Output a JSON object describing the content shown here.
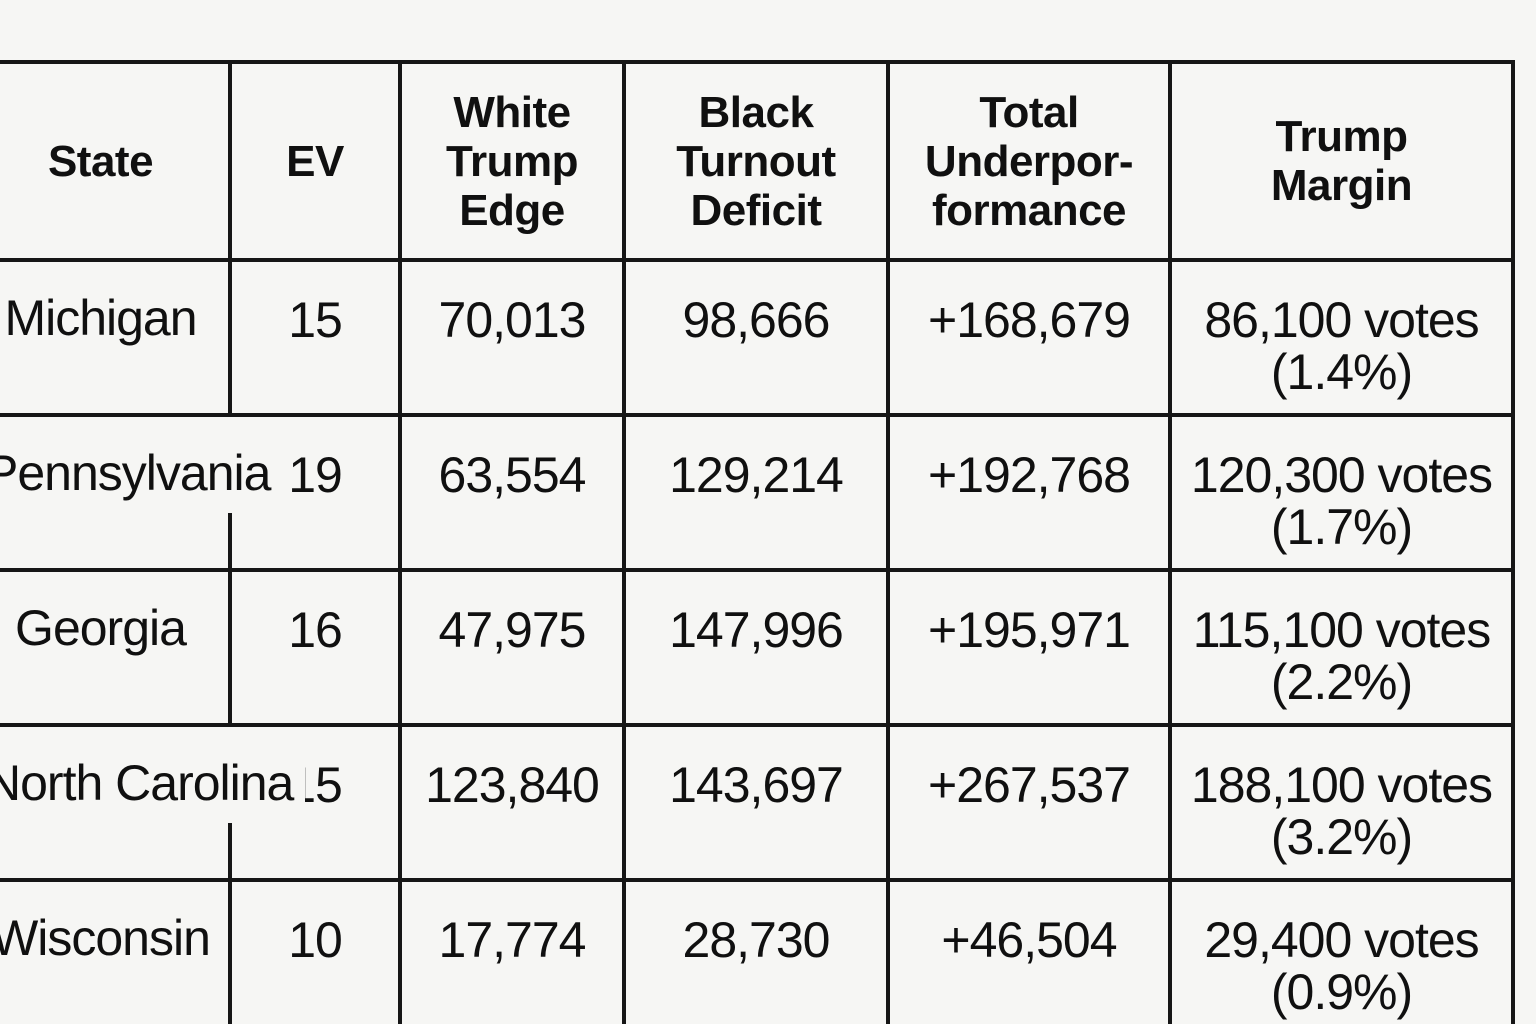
{
  "page": {
    "background": "#f6f6f4",
    "border_color": "#161616",
    "text_color": "#101010"
  },
  "chart_data": {
    "type": "table",
    "columns": [
      "State",
      "EV",
      "White Trump Edge",
      "Black Turnout Deficit",
      "Total Underpor-formance",
      "Trump Margin"
    ],
    "headers": {
      "state": "State",
      "ev": "EV",
      "white_trump_edge": "White\nTrump\nEdge",
      "black_turnout_deficit": "Black\nTurnout\nDeficit",
      "total_underperformance": "Total\nUnderpor-\nformance",
      "trump_margin": "Trump\nMargin"
    },
    "rows": [
      {
        "state": "Michigan",
        "ev": "15",
        "white_trump_edge": "70,013",
        "black_turnout_deficit": "98,666",
        "total_underperformance": "+168,679",
        "trump_margin": "86,100 votes\n(1.4%)"
      },
      {
        "state": "Pennsylvania",
        "ev": "19",
        "white_trump_edge": "63,554",
        "black_turnout_deficit": "129,214",
        "total_underperformance": "+192,768",
        "trump_margin": "120,300 votes\n(1.7%)"
      },
      {
        "state": "Georgia",
        "ev": "16",
        "white_trump_edge": "47,975",
        "black_turnout_deficit": "147,996",
        "total_underperformance": "+195,971",
        "trump_margin": "115,100 votes\n(2.2%)"
      },
      {
        "state": "North Carolina",
        "ev": "15",
        "white_trump_edge": "123,840",
        "black_turnout_deficit": "143,697",
        "total_underperformance": "+267,537",
        "trump_margin": "188,100 votes\n(3.2%)"
      },
      {
        "state": "Wisconsin",
        "ev": "10",
        "white_trump_edge": "17,774",
        "black_turnout_deficit": "28,730",
        "total_underperformance": "+46,504",
        "trump_margin": "29,400 votes\n(0.9%)"
      }
    ]
  }
}
